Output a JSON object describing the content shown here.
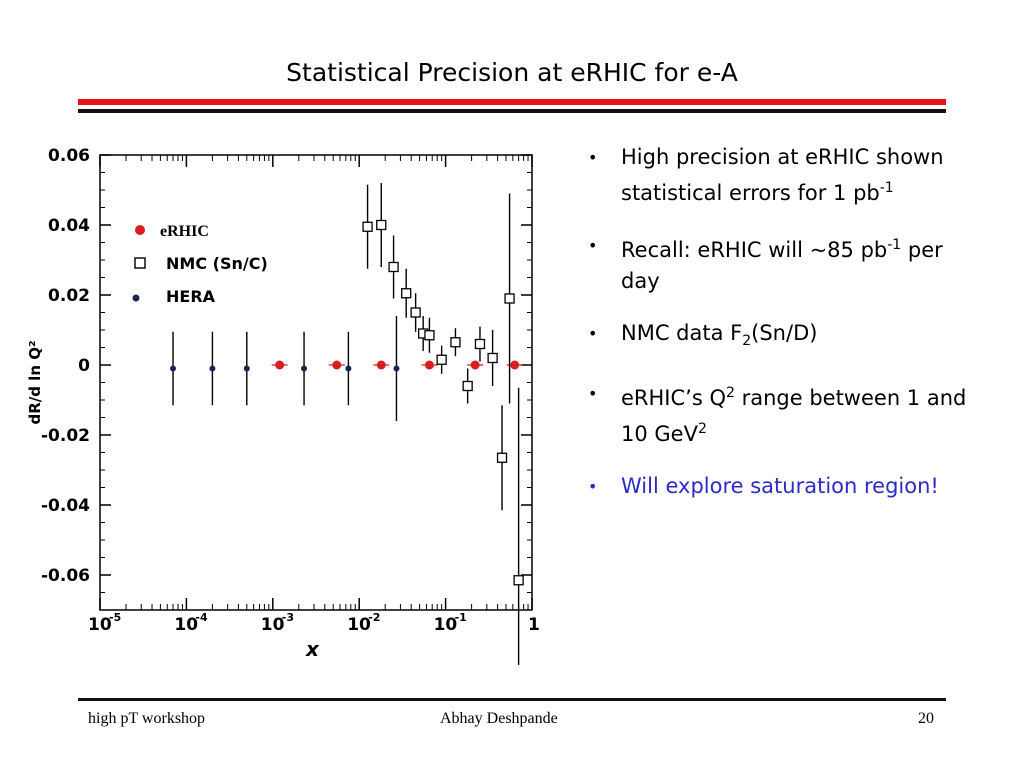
{
  "slide": {
    "title": "Statistical Precision at eRHIC for e-A",
    "footer_left": "high pT workshop",
    "footer_center": "Abhay Deshpande",
    "footer_right": "20"
  },
  "bullets": [
    {
      "parts": [
        {
          "t": "High precision at eRHIC shown statistical errors for 1 pb"
        },
        {
          "t": "-1",
          "sup": true
        }
      ]
    },
    {
      "parts": [
        {
          "t": "Recall: eRHIC will ~85 pb"
        },
        {
          "t": "-1",
          "sup": true
        },
        {
          "t": " per day"
        }
      ]
    },
    {
      "parts": [
        {
          "t": "NMC data F"
        },
        {
          "t": "2",
          "sub": true
        },
        {
          "t": "(Sn/D)"
        }
      ]
    },
    {
      "parts": [
        {
          "t": "eRHIC’s Q"
        },
        {
          "t": "2",
          "sup": true
        },
        {
          "t": " range between 1 and 10 GeV"
        },
        {
          "t": "2",
          "sup": true
        }
      ]
    },
    {
      "parts": [
        {
          "t": "Will explore saturation region!"
        }
      ],
      "accent": true
    }
  ],
  "colors": {
    "accent_text": "#2b2bc8",
    "title_rule": "#e8141c",
    "erhic": "#d81e1e",
    "hera": "#1a2450"
  },
  "chart_data": {
    "type": "scatter",
    "xscale": "log",
    "xlim": [
      1e-05,
      1
    ],
    "ylim": [
      -0.07,
      0.06
    ],
    "xlabel": "x",
    "ylabel": "dR/d ln Q²",
    "xticks": [
      {
        "v": 1e-05,
        "base": "10",
        "exp": "-5"
      },
      {
        "v": 0.0001,
        "base": "10",
        "exp": "-4"
      },
      {
        "v": 0.001,
        "base": "10",
        "exp": "-3"
      },
      {
        "v": 0.01,
        "base": "10",
        "exp": "-2"
      },
      {
        "v": 0.1,
        "base": "10",
        "exp": "-1"
      },
      {
        "v": 1,
        "base": "1",
        "exp": ""
      }
    ],
    "yticks": [
      {
        "v": 0.06,
        "label": "0.06"
      },
      {
        "v": 0.04,
        "label": "0.04"
      },
      {
        "v": 0.02,
        "label": "0.02"
      },
      {
        "v": 0,
        "label": "0"
      },
      {
        "v": -0.02,
        "label": "-0.02"
      },
      {
        "v": -0.04,
        "label": "-0.04"
      },
      {
        "v": -0.06,
        "label": "-0.06"
      }
    ],
    "legend_placement": "top-left",
    "series": [
      {
        "name": "eRHIC",
        "marker": "filled-circle",
        "color": "#d81e1e",
        "points": [
          {
            "x": 0.0012,
            "y": 0.0,
            "err": 0.0006
          },
          {
            "x": 0.0055,
            "y": 0.0,
            "err": 0.0006
          },
          {
            "x": 0.018,
            "y": 0.0,
            "err": 0.0006
          },
          {
            "x": 0.065,
            "y": 0.0,
            "err": 0.0006
          },
          {
            "x": 0.22,
            "y": 0.0,
            "err": 0.0006
          },
          {
            "x": 0.63,
            "y": 0.0,
            "err": 0.0006
          }
        ]
      },
      {
        "name": "NMC (Sn/C)",
        "marker": "open-square",
        "color": "#000000",
        "points": [
          {
            "x": 0.0125,
            "y": 0.0395,
            "err": 0.012
          },
          {
            "x": 0.018,
            "y": 0.04,
            "err": 0.012
          },
          {
            "x": 0.025,
            "y": 0.028,
            "err": 0.009
          },
          {
            "x": 0.035,
            "y": 0.0205,
            "err": 0.007
          },
          {
            "x": 0.045,
            "y": 0.015,
            "err": 0.0055
          },
          {
            "x": 0.055,
            "y": 0.009,
            "err": 0.005
          },
          {
            "x": 0.065,
            "y": 0.0085,
            "err": 0.005
          },
          {
            "x": 0.09,
            "y": 0.0015,
            "err": 0.004
          },
          {
            "x": 0.13,
            "y": 0.0065,
            "err": 0.004
          },
          {
            "x": 0.18,
            "y": -0.006,
            "err": 0.005
          },
          {
            "x": 0.25,
            "y": 0.006,
            "err": 0.005
          },
          {
            "x": 0.35,
            "y": 0.002,
            "err": 0.008
          },
          {
            "x": 0.45,
            "y": -0.0265,
            "err": 0.015
          },
          {
            "x": 0.55,
            "y": 0.019,
            "err": 0.03
          },
          {
            "x": 0.7,
            "y": -0.0615,
            "err": 0.055
          }
        ]
      },
      {
        "name": "HERA",
        "marker": "small-filled-circle",
        "color": "#1a2450",
        "points": [
          {
            "x": 7e-05,
            "y": -0.001,
            "err": 0.0105
          },
          {
            "x": 0.0002,
            "y": -0.001,
            "err": 0.0105
          },
          {
            "x": 0.0005,
            "y": -0.001,
            "err": 0.0105
          },
          {
            "x": 0.0023,
            "y": -0.001,
            "err": 0.0105
          },
          {
            "x": 0.0075,
            "y": -0.001,
            "err": 0.0105
          },
          {
            "x": 0.027,
            "y": -0.001,
            "err": 0.015
          }
        ]
      }
    ]
  }
}
